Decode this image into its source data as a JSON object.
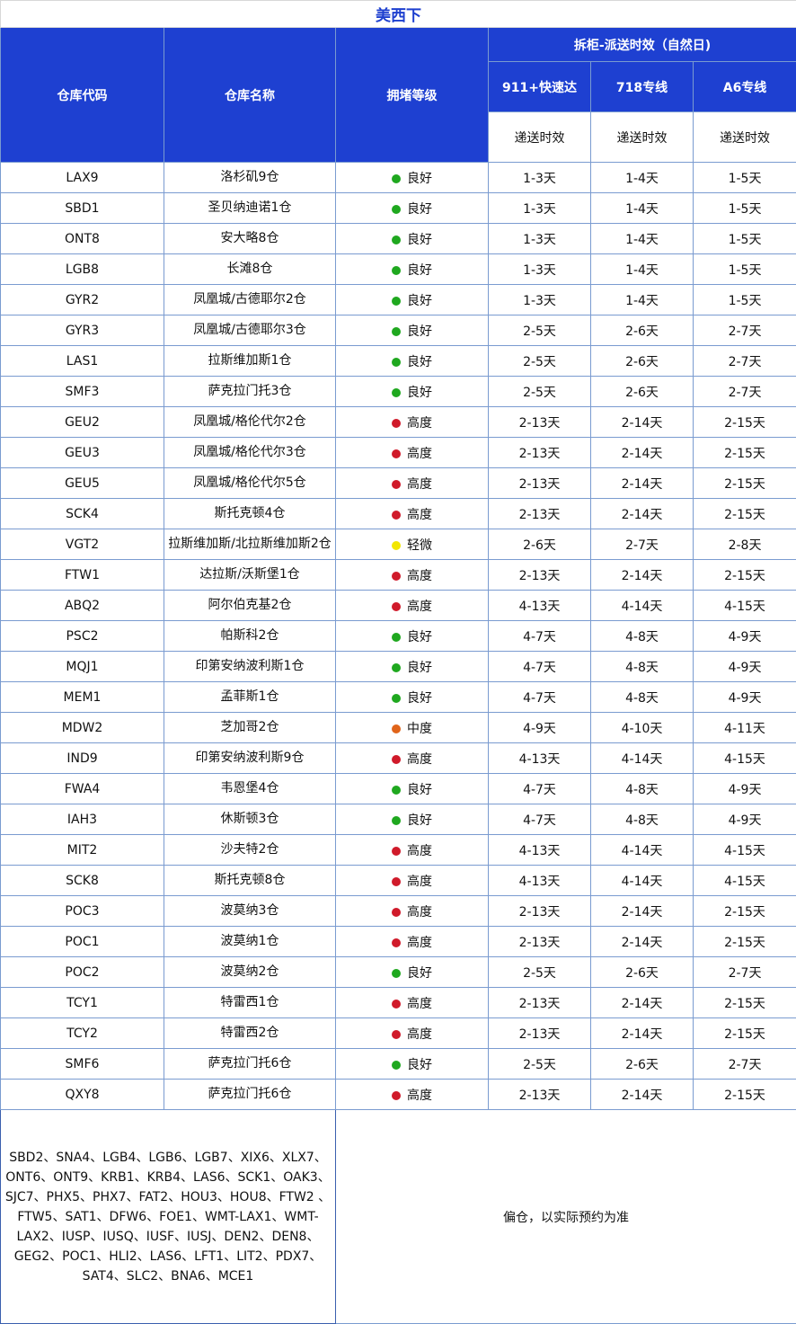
{
  "title": "美西下",
  "headers": {
    "code": "仓库代码",
    "name": "仓库名称",
    "level": "拥堵等级",
    "group": "拆柜-派送时效（自然日)",
    "ch1": "911+快速达",
    "ch2": "718专线",
    "ch3": "A6专线",
    "sub": "递送时效"
  },
  "level_colors": {
    "良好": "#1fa81f",
    "高度": "#d01a2a",
    "轻微": "#f2e600",
    "中度": "#e0641a"
  },
  "rows": [
    [
      "LAX9",
      "洛杉矶9仓",
      "良好",
      "1-3天",
      "1-4天",
      "1-5天"
    ],
    [
      "SBD1",
      "圣贝纳迪诺1仓",
      "良好",
      "1-3天",
      "1-4天",
      "1-5天"
    ],
    [
      "ONT8",
      "安大略8仓",
      "良好",
      "1-3天",
      "1-4天",
      "1-5天"
    ],
    [
      "LGB8",
      "长滩8仓",
      "良好",
      "1-3天",
      "1-4天",
      "1-5天"
    ],
    [
      "GYR2",
      "凤凰城/古德耶尔2仓",
      "良好",
      "1-3天",
      "1-4天",
      "1-5天"
    ],
    [
      "GYR3",
      "凤凰城/古德耶尔3仓",
      "良好",
      "2-5天",
      "2-6天",
      "2-7天"
    ],
    [
      "LAS1",
      "拉斯维加斯1仓",
      "良好",
      "2-5天",
      "2-6天",
      "2-7天"
    ],
    [
      "SMF3",
      "萨克拉门托3仓",
      "良好",
      "2-5天",
      "2-6天",
      "2-7天"
    ],
    [
      "GEU2",
      "凤凰城/格伦代尔2仓",
      "高度",
      "2-13天",
      "2-14天",
      "2-15天"
    ],
    [
      "GEU3",
      "凤凰城/格伦代尔3仓",
      "高度",
      "2-13天",
      "2-14天",
      "2-15天"
    ],
    [
      "GEU5",
      "凤凰城/格伦代尔5仓",
      "高度",
      "2-13天",
      "2-14天",
      "2-15天"
    ],
    [
      "SCK4",
      "斯托克顿4仓",
      "高度",
      "2-13天",
      "2-14天",
      "2-15天"
    ],
    [
      "VGT2",
      "拉斯维加斯/北拉斯维加斯2仓",
      "轻微",
      "2-6天",
      "2-7天",
      "2-8天"
    ],
    [
      "FTW1",
      "达拉斯/沃斯堡1仓",
      "高度",
      "2-13天",
      "2-14天",
      "2-15天"
    ],
    [
      "ABQ2",
      "阿尔伯克基2仓",
      "高度",
      "4-13天",
      "4-14天",
      "4-15天"
    ],
    [
      "PSC2",
      "帕斯科2仓",
      "良好",
      "4-7天",
      "4-8天",
      "4-9天"
    ],
    [
      "MQJ1",
      "印第安纳波利斯1仓",
      "良好",
      "4-7天",
      "4-8天",
      "4-9天"
    ],
    [
      "MEM1",
      "孟菲斯1仓",
      "良好",
      "4-7天",
      "4-8天",
      "4-9天"
    ],
    [
      "MDW2",
      "芝加哥2仓",
      "中度",
      "4-9天",
      "4-10天",
      "4-11天"
    ],
    [
      "IND9",
      "印第安纳波利斯9仓",
      "高度",
      "4-13天",
      "4-14天",
      "4-15天"
    ],
    [
      "FWA4",
      "韦恩堡4仓",
      "良好",
      "4-7天",
      "4-8天",
      "4-9天"
    ],
    [
      "IAH3",
      "休斯顿3仓",
      "良好",
      "4-7天",
      "4-8天",
      "4-9天"
    ],
    [
      "MIT2",
      "沙夫特2仓",
      "高度",
      "4-13天",
      "4-14天",
      "4-15天"
    ],
    [
      "SCK8",
      "斯托克顿8仓",
      "高度",
      "4-13天",
      "4-14天",
      "4-15天"
    ],
    [
      "POC3",
      "波莫纳3仓",
      "高度",
      "2-13天",
      "2-14天",
      "2-15天"
    ],
    [
      "POC1",
      "波莫纳1仓",
      "高度",
      "2-13天",
      "2-14天",
      "2-15天"
    ],
    [
      "POC2",
      "波莫纳2仓",
      "良好",
      "2-5天",
      "2-6天",
      "2-7天"
    ],
    [
      "TCY1",
      "特雷西1仓",
      "高度",
      "2-13天",
      "2-14天",
      "2-15天"
    ],
    [
      "TCY2",
      "特雷西2仓",
      "高度",
      "2-13天",
      "2-14天",
      "2-15天"
    ],
    [
      "SMF6",
      "萨克拉门托6仓",
      "良好",
      "2-5天",
      "2-6天",
      "2-7天"
    ],
    [
      "QXY8",
      "萨克拉门托6仓",
      "高度",
      "2-13天",
      "2-14天",
      "2-15天"
    ]
  ],
  "others": "SBD2、SNA4、LGB4、LGB6、LGB7、XIX6、XLX7、ONT6、ONT9、KRB1、KRB4、LAS6、SCK1、OAK3、SJC7、PHX5、PHX7、FAT2、HOU3、HOU8、FTW2 、FTW5、SAT1、DFW6、FOE1、WMT-LAX1、WMT-LAX2、IUSP、IUSQ、IUSF、IUSJ、DEN2、DEN8、GEG2、POC1、HLI2、LAS6、LFT1、LIT2、PDX7、SAT4、SLC2、BNA6、MCE1",
  "others_note": "偏仓，以实际预约为准"
}
